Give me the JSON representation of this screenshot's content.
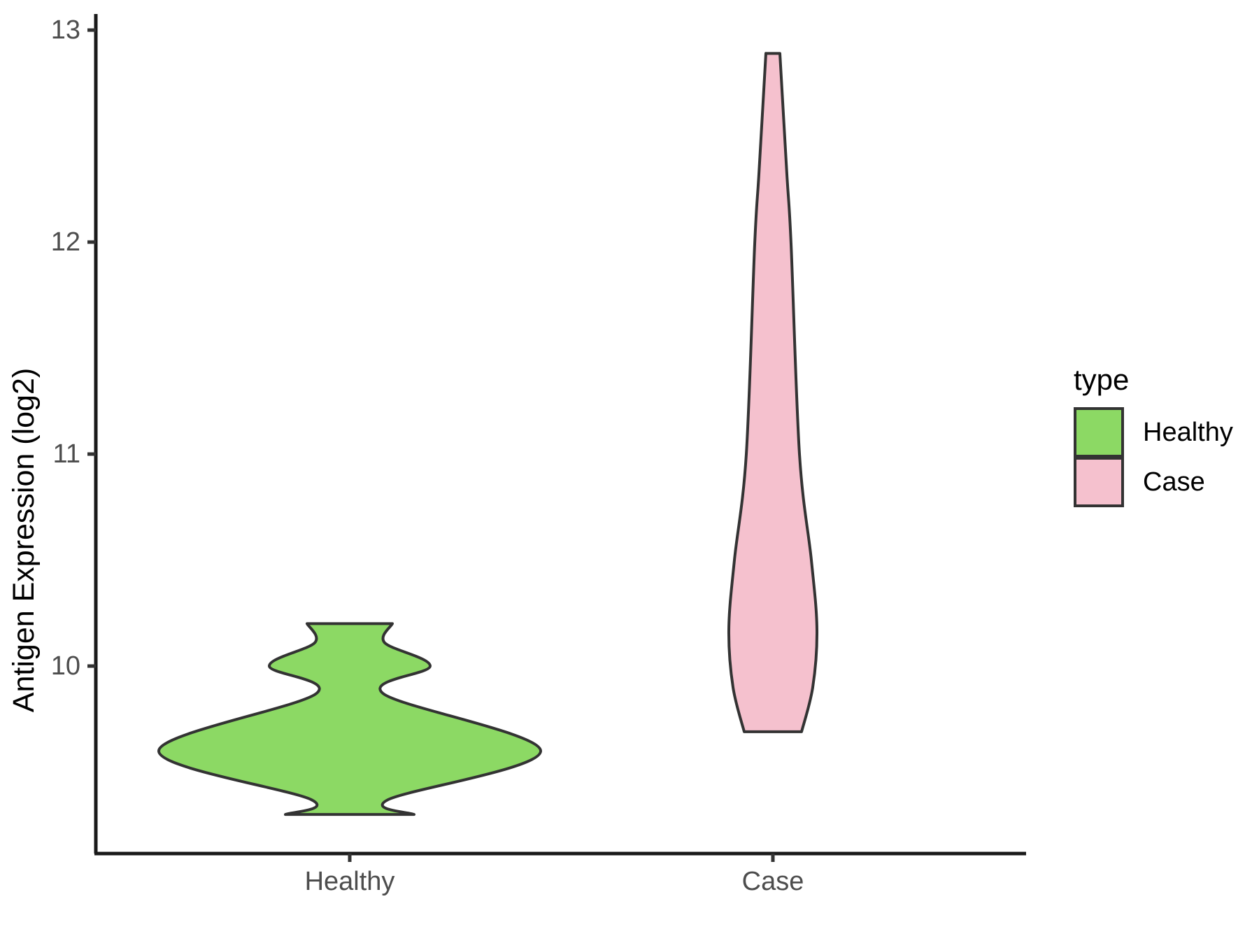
{
  "figure": {
    "background": "#FFFFFF"
  },
  "chart_data": {
    "type": "violin",
    "title": "",
    "xlabel": "",
    "ylabel": "Antigen Expression (log2)",
    "x_categories": [
      "Healthy",
      "Case"
    ],
    "y_axis": {
      "ticks": [
        10,
        11,
        12,
        13
      ],
      "range": [
        9.1,
        13.05
      ],
      "grid": false
    },
    "legend": {
      "title": "type",
      "position": "right",
      "entries": [
        {
          "label": "Healthy",
          "color": "#8CD964"
        },
        {
          "label": "Case",
          "color": "#F5C1CE"
        }
      ]
    },
    "style": {
      "violin_outline_color": "#333333",
      "axis_line_color": "#1A1A1A",
      "tick_color": "#333333",
      "tick_label_color": "#4D4D4D",
      "axis_title_color": "#000000",
      "legend_text_color": "#000000"
    },
    "series": [
      {
        "name": "Healthy",
        "fill": "#8CD964",
        "flat_top_value": 10.2,
        "flat_bottom_value": 9.3,
        "profile": [
          {
            "v": 10.2,
            "hw": 61
          },
          {
            "v": 10.11,
            "hw": 50
          },
          {
            "v": 10.0,
            "hw": 115
          },
          {
            "v": 9.87,
            "hw": 48
          },
          {
            "v": 9.6,
            "hw": 273
          },
          {
            "v": 9.37,
            "hw": 55
          },
          {
            "v": 9.3,
            "hw": 92
          }
        ]
      },
      {
        "name": "Case",
        "fill": "#F5C1CE",
        "flat_top_value": 12.89,
        "flat_bottom_value": 9.69,
        "profile": [
          {
            "v": 12.89,
            "hw": 10
          },
          {
            "v": 12.32,
            "hw": 20
          },
          {
            "v": 11.99,
            "hw": 26
          },
          {
            "v": 11.0,
            "hw": 38
          },
          {
            "v": 10.5,
            "hw": 55
          },
          {
            "v": 10.17,
            "hw": 63
          },
          {
            "v": 9.9,
            "hw": 57
          },
          {
            "v": 9.69,
            "hw": 41
          }
        ]
      }
    ]
  }
}
